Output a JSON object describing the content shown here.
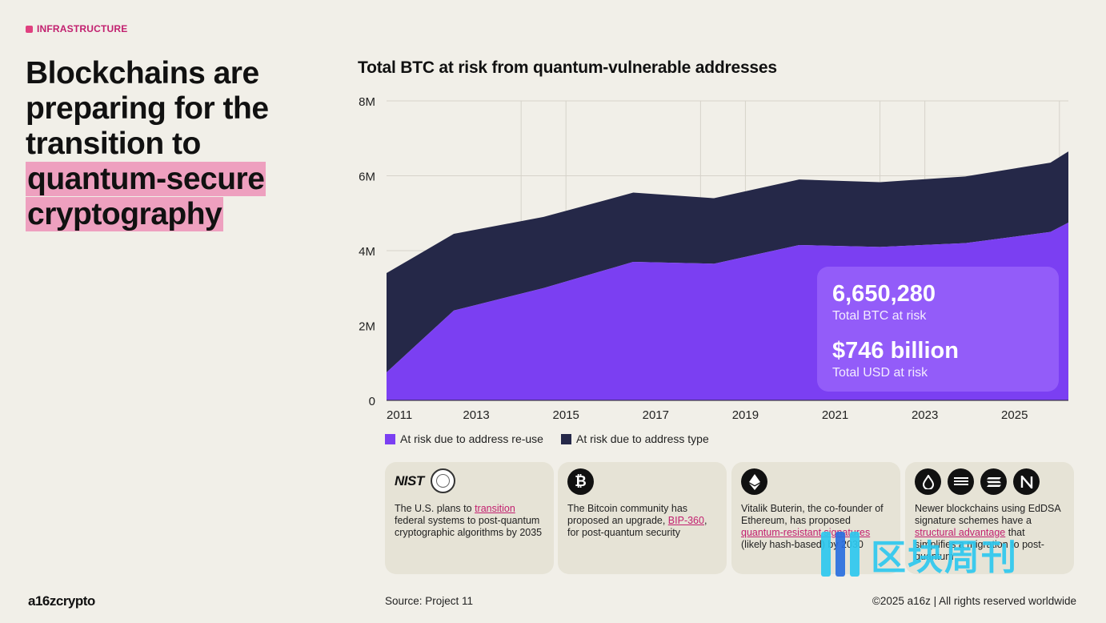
{
  "tag": {
    "label": "INFRASTRUCTURE"
  },
  "headline": {
    "line1": "Blockchains are",
    "line2": "preparing for the",
    "line3": "transition to",
    "highlight1": "quantum-secure",
    "highlight2": "cryptography"
  },
  "chart_data": {
    "type": "area",
    "title": "Total BTC at risk from quantum-vulnerable addresses",
    "xlabel": "",
    "ylabel": "",
    "x": [
      2011,
      2012.5,
      2014.5,
      2016.5,
      2018.3,
      2020.2,
      2022,
      2023.9,
      2025.8,
      2026.2
    ],
    "xlim": [
      2011,
      2026.2
    ],
    "ylim": [
      0,
      8000000
    ],
    "x_ticks": [
      "2011",
      "2013",
      "2015",
      "2017",
      "2019",
      "2021",
      "2023",
      "2025"
    ],
    "y_ticks": [
      "0",
      "2M",
      "4M",
      "6M",
      "8M"
    ],
    "stacked": true,
    "grid": true,
    "legend_position": "bottom-left",
    "series": [
      {
        "name": "At risk due to address re-use",
        "color": "#7b3ff2",
        "values": [
          750000,
          2400000,
          3000000,
          3700000,
          3650000,
          4150000,
          4100000,
          4200000,
          4500000,
          4750000
        ]
      },
      {
        "name": "At risk due to address type",
        "color": "#252848",
        "values": [
          2650000,
          2050000,
          1900000,
          1850000,
          1750000,
          1750000,
          1730000,
          1780000,
          1850000,
          1900000
        ]
      }
    ]
  },
  "stats": {
    "total_btc_value": "6,650,280",
    "total_btc_label": "Total BTC at risk",
    "total_usd_value": "$746 billion",
    "total_usd_label": "Total USD at risk"
  },
  "cards": [
    {
      "logo_text": "NIST",
      "pre": "The U.S. plans to ",
      "link": "transition",
      "post": " federal systems to post-quantum cryptographic algorithms by 2035"
    },
    {
      "pre": "The Bitcoin community has proposed an upgrade, ",
      "link": "BIP-360",
      "post": ", for post-quantum security"
    },
    {
      "pre": "Vitalik Buterin, the co-founder of Ethereum, has proposed ",
      "link": "quantum-resistant signatures",
      "post": " (likely hash-based) by 2030"
    },
    {
      "pre": "Newer blockchains using EdDSA signature schemes have a ",
      "link": "structural advantage",
      "post": " that simplifies a migration to post-quantum"
    }
  ],
  "footer": {
    "logo": "a16zcrypto",
    "source": "Source: Project 11",
    "copyright": "©2025 a16z | All rights reserved worldwide"
  },
  "watermark": {
    "text": "区块周刊"
  },
  "colors": {
    "accent": "#c2206f",
    "highlight": "#eea0bf",
    "reuse": "#7b3ff2",
    "type": "#252848",
    "background": "#f1efe8"
  }
}
